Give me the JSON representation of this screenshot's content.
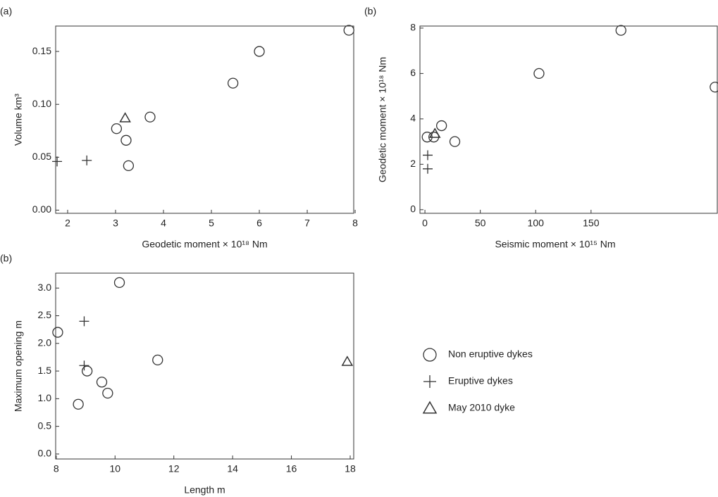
{
  "chart_data": [
    {
      "type": "scatter",
      "label": "(a)",
      "xlabel": "Geodetic moment × 10¹⁸ Nm",
      "ylabel": "Volume km³",
      "xlim": [
        1.75,
        7.97
      ],
      "ylim": [
        -0.003,
        0.174
      ],
      "xticks": [
        2,
        3,
        4,
        5,
        6,
        7,
        8
      ],
      "yticks": [
        {
          "value": 0,
          "label": "0.00"
        },
        {
          "value": 0.05,
          "label": "0.05"
        },
        {
          "value": 0.1,
          "label": "0.10"
        },
        {
          "value": 0.15,
          "label": "0.15"
        }
      ],
      "series": [
        {
          "marker": "circle",
          "color": "#333333",
          "x": [
            3.02,
            3.22,
            3.27,
            3.72,
            5.45,
            6.0,
            7.87
          ],
          "y": [
            0.077,
            0.066,
            0.042,
            0.088,
            0.12,
            0.15,
            0.17
          ]
        },
        {
          "marker": "plus",
          "color": "#333333",
          "x": [
            1.78,
            2.4
          ],
          "y": [
            0.046,
            0.047
          ]
        },
        {
          "marker": "triangle",
          "color": "#333333",
          "x": [
            3.2
          ],
          "y": [
            0.087
          ]
        }
      ]
    },
    {
      "type": "scatter",
      "label": "(b)",
      "xlabel": "Seismic moment × 10¹⁵ Nm",
      "ylabel": "Geodetic moment × 10¹⁸ Nm",
      "xlim": [
        -4.5,
        264
      ],
      "ylim": [
        -0.16,
        8.09
      ],
      "xticks": [
        0,
        50,
        100,
        150
      ],
      "yticks": [
        0,
        2,
        4,
        6,
        8
      ],
      "series": [
        {
          "marker": "circle",
          "color": "#333333",
          "x": [
            2,
            8,
            15,
            27,
            103,
            177,
            262
          ],
          "y": [
            3.2,
            3.2,
            3.7,
            3.0,
            6.0,
            7.9,
            5.4
          ]
        },
        {
          "marker": "plus",
          "color": "#333333",
          "x": [
            2.5,
            2.5
          ],
          "y": [
            2.4,
            1.8
          ]
        },
        {
          "marker": "triangle",
          "color": "#333333",
          "x": [
            9
          ],
          "y": [
            3.35
          ]
        }
      ]
    },
    {
      "type": "scatter",
      "label": "(b)",
      "xlabel": "Length m",
      "ylabel": "Maximum  opening m",
      "xlim": [
        7.98,
        18.12
      ],
      "ylim": [
        -0.09,
        3.27
      ],
      "xticks": [
        8,
        10,
        12,
        14,
        16,
        18
      ],
      "yticks": [
        {
          "value": 0,
          "label": "0.0"
        },
        {
          "value": 0.5,
          "label": "0.5"
        },
        {
          "value": 1,
          "label": "1.0"
        },
        {
          "value": 1.5,
          "label": "1.5"
        },
        {
          "value": 2,
          "label": "2.0"
        },
        {
          "value": 2.5,
          "label": "2.5"
        },
        {
          "value": 3,
          "label": "3.0"
        }
      ],
      "legend": "right",
      "series": [
        {
          "name": "Non eruptive dykes",
          "marker": "circle",
          "color": "#333333",
          "x": [
            8.05,
            8.75,
            10.15,
            9.05,
            9.55,
            9.75,
            11.45
          ],
          "y": [
            2.2,
            0.9,
            3.1,
            1.5,
            1.3,
            1.1,
            1.7
          ]
        },
        {
          "name": "Eruptive dykes",
          "marker": "plus",
          "color": "#333333",
          "x": [
            8.95,
            8.95
          ],
          "y": [
            2.4,
            1.6
          ]
        },
        {
          "name": "May 2010 dyke",
          "marker": "triangle",
          "color": "#333333",
          "x": [
            17.9
          ],
          "y": [
            1.67
          ]
        }
      ]
    }
  ]
}
